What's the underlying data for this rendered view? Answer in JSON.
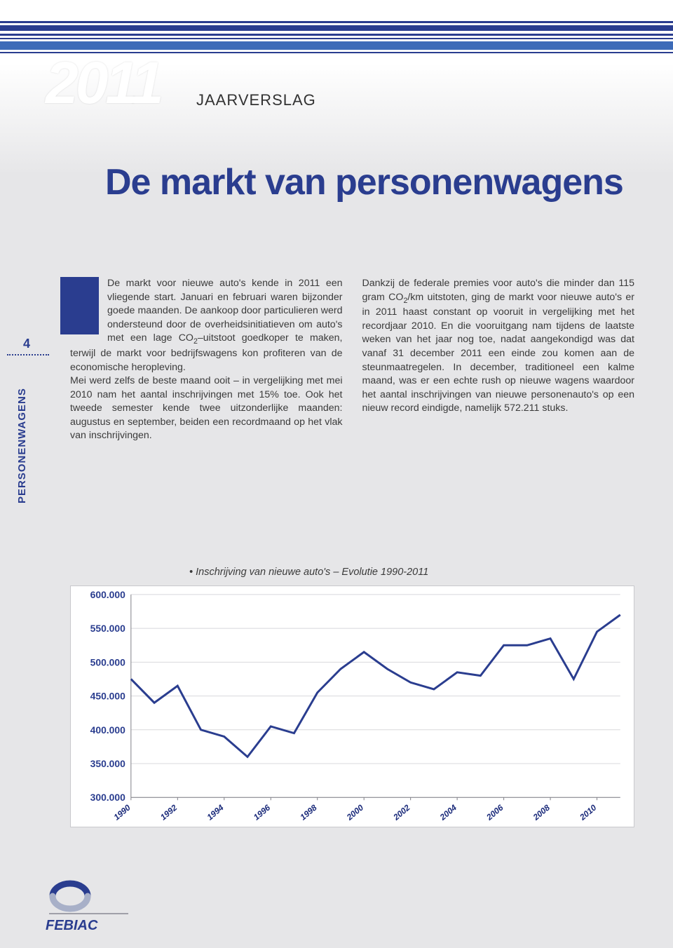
{
  "header": {
    "year": "2011",
    "subtitle": "JAARVERSLAG",
    "title": "De markt van personenwagens"
  },
  "side": {
    "page_number": "4",
    "section_label": "PERSONENWAGENS"
  },
  "body": {
    "col_left_html": "De markt voor nieuwe auto's kende in 2011 een vliegende start. Januari en februari waren bijzonder goede maanden. De aankoop door particulieren werd ondersteund door de overheidsinitiatieven om auto's met een lage CO<sub>2</sub>–uitstoot goedkoper te maken, terwijl de markt voor bedrijfswagens kon profiteren van de economische heropleving.<br>Mei werd zelfs de beste maand ooit – in vergelijking met mei 2010 nam het aantal inschrijvingen met 15% toe. Ook het tweede semester kende twee uitzonderlijke maanden: augustus en september, beiden een recordmaand op het vlak van inschrijvingen.",
    "col_right_html": "Dankzij de federale premies voor auto's die minder dan 115 gram CO<sub>2</sub>/km uitstoten, ging de markt voor nieuwe auto's er in 2011 haast constant op vooruit in vergelijking met het recordjaar 2010. En die vooruitgang nam tijdens de laatste weken van het jaar nog toe, nadat aangekondigd was dat vanaf 31 december 2011 een einde zou komen aan de steunmaatregelen. In december, traditioneel een kalme maand, was er een echte rush op nieuwe wagens waardoor het aantal inschrijvingen van nieuwe personenauto's op een nieuw record eindigde, namelijk 572.211 stuks."
  },
  "chart": {
    "caption": "Inschrijving van nieuwe auto's – Evolutie 1990-2011",
    "type": "line",
    "ylim": [
      300000,
      600000
    ],
    "ytick_step": 50000,
    "ytick_labels": [
      "300.000",
      "350.000",
      "400.000",
      "450.000",
      "500.000",
      "550.000",
      "600.000"
    ],
    "x_years": [
      1990,
      1991,
      1992,
      1993,
      1994,
      1995,
      1996,
      1997,
      1998,
      1999,
      2000,
      2001,
      2002,
      2003,
      2004,
      2005,
      2006,
      2007,
      2008,
      2009,
      2010,
      2011
    ],
    "x_tick_years": [
      1990,
      1992,
      1994,
      1996,
      1998,
      2000,
      2002,
      2004,
      2006,
      2008,
      2010
    ],
    "values": [
      475000,
      440000,
      465000,
      400000,
      390000,
      360000,
      405000,
      395000,
      455000,
      490000,
      515000,
      490000,
      470000,
      460000,
      485000,
      480000,
      525000,
      525000,
      535000,
      475000,
      545000,
      570000
    ],
    "line_color": "#2a3d8f",
    "line_width": 3,
    "grid_color": "#d8d8dc",
    "axis_color": "#808088",
    "background_color": "#ffffff",
    "tick_label_color": "#2a3d8f",
    "tick_fontsize": 14,
    "xtick_fontsize": 12
  },
  "logo": {
    "name": "FEBIAC",
    "ring_color": "#2a3d8f",
    "underline_color": "#a0a0a8"
  },
  "colors": {
    "brand": "#2a3d8f",
    "stripe_mid": "#3d6bb8",
    "page_bg": "#e6e6e8",
    "text": "#3a3a3a"
  }
}
